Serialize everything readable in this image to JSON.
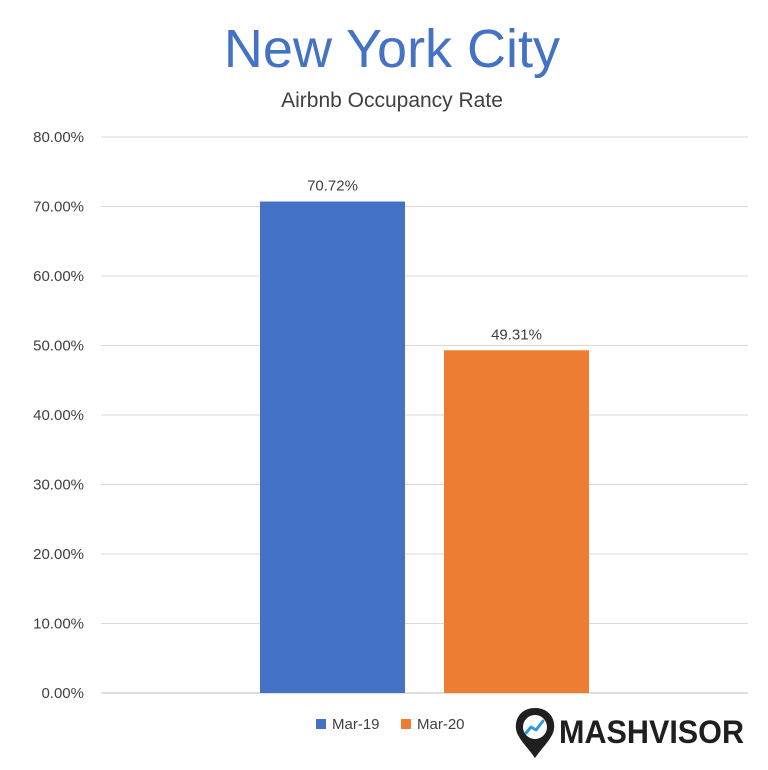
{
  "chart_data": {
    "type": "bar",
    "title": "New York City",
    "subtitle": "Airbnb Occupancy Rate",
    "categories": [
      "Mar-19",
      "Mar-20"
    ],
    "values": [
      70.72,
      49.31
    ],
    "data_labels": [
      "70.72%",
      "49.31%"
    ],
    "colors": [
      "#4472C4",
      "#ED7D31"
    ],
    "title_color": "#4472C4",
    "ylim": [
      0,
      80
    ],
    "yticks": [
      0,
      10,
      20,
      30,
      40,
      50,
      60,
      70,
      80
    ],
    "ytick_labels": [
      "0.00%",
      "10.00%",
      "20.00%",
      "30.00%",
      "40.00%",
      "50.00%",
      "60.00%",
      "70.00%",
      "80.00%"
    ],
    "grid": true,
    "legend": {
      "position": "bottom",
      "entries": [
        {
          "label": "Mar-19",
          "color": "#4472C4"
        },
        {
          "label": "Mar-20",
          "color": "#ED7D31"
        }
      ]
    }
  },
  "logo": {
    "text": "MASHVISOR",
    "icon": "map-pin-chart-icon",
    "color": "#1F1F1F",
    "accent": "#2E9BD6"
  }
}
